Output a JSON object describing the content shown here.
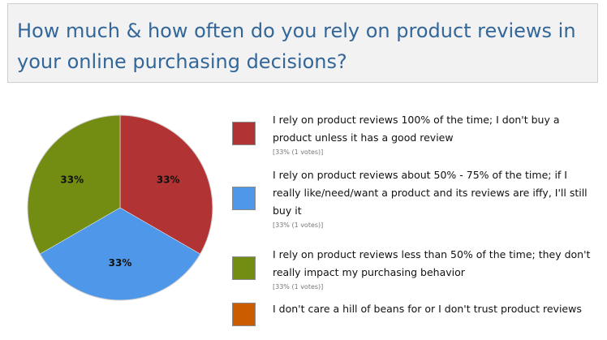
{
  "poll": {
    "title": "How much & how often do you rely on product reviews in your online purchasing decisions?"
  },
  "chart_data": {
    "type": "pie",
    "title": "",
    "categories": [
      "I rely on product reviews 100% of the time; I don't buy a product unless it has a good review",
      "I rely on product reviews about 50% - 75% of the time; if I really like/need/want a product and its reviews are iffy, I'll still buy it",
      "I rely on product reviews less than 50% of the time; they don't really impact my purchasing behavior",
      "I don't care a hill of beans for or I don't trust product reviews"
    ],
    "values": [
      1,
      1,
      1,
      0
    ],
    "slice_labels": [
      "33%",
      "33%",
      "33%",
      ""
    ],
    "vote_labels": [
      "[33% (1 votes)]",
      "[33% (1 votes)]",
      "[33% (1 votes)]",
      ""
    ],
    "colors": [
      "#b23333",
      "#4f97e8",
      "#738c12",
      "#cc5c00"
    ],
    "legend": "right"
  }
}
